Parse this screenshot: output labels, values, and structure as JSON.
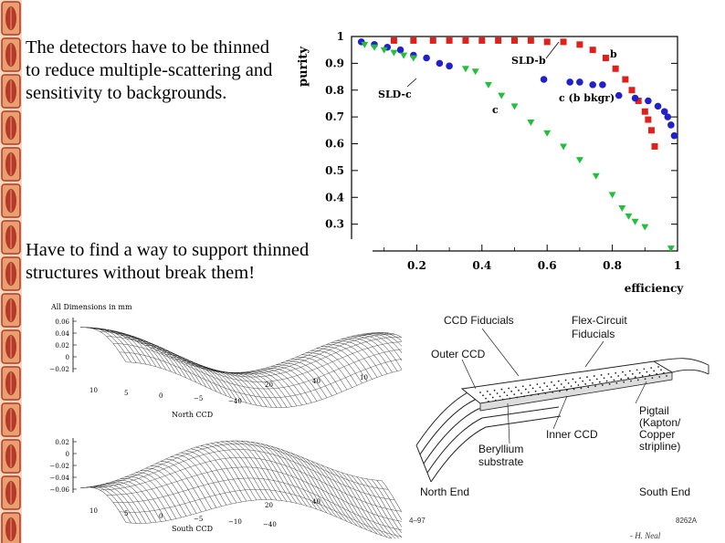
{
  "slide": {
    "text_1": "The detectors have to be thinned to reduce multiple-scattering and sensitivity to backgrounds.",
    "text_2": "Have to find a way to support thinned structures without break them!",
    "credit": "- H. Neal",
    "figure_code_left": "4–97",
    "figure_code_right": "8262A"
  },
  "border": {
    "color": "#b5382d",
    "accent": "#e8a070"
  },
  "chart_data": [
    {
      "type": "scatter",
      "xlabel": "efficiency",
      "ylabel": "purity",
      "xlim": [
        0,
        1
      ],
      "ylim": [
        0.2,
        1.0
      ],
      "x_ticks": [
        "0",
        "0.2",
        "0.4",
        "0.6",
        "0.8",
        "1"
      ],
      "y_ticks": [
        "0.2",
        "0.3",
        "0.4",
        "0.5",
        "0.6",
        "0.7",
        "0.8",
        "0.9",
        "1"
      ],
      "annotations": [
        "SLD-b",
        "SLD-c",
        "b",
        "c",
        "c (b bkgr)"
      ],
      "series": [
        {
          "name": "b",
          "color": "#e0201a",
          "marker": "square",
          "x": [
            0.13,
            0.19,
            0.25,
            0.3,
            0.35,
            0.4,
            0.45,
            0.5,
            0.55,
            0.6,
            0.65,
            0.7,
            0.74,
            0.78,
            0.81,
            0.84,
            0.86,
            0.88,
            0.9,
            0.91,
            0.92,
            0.93
          ],
          "y": [
            0.985,
            0.985,
            0.985,
            0.985,
            0.985,
            0.985,
            0.985,
            0.985,
            0.985,
            0.98,
            0.98,
            0.97,
            0.95,
            0.92,
            0.88,
            0.84,
            0.8,
            0.76,
            0.72,
            0.69,
            0.65,
            0.59
          ]
        },
        {
          "name": "c (b bkgr)",
          "color": "#2020cc",
          "marker": "circle",
          "x": [
            0.03,
            0.07,
            0.11,
            0.15,
            0.19,
            0.23,
            0.27,
            0.3,
            0.59,
            0.67,
            0.7,
            0.74,
            0.77,
            0.82,
            0.87,
            0.91,
            0.94,
            0.96,
            0.97,
            0.98,
            0.99
          ],
          "y": [
            0.98,
            0.97,
            0.96,
            0.95,
            0.93,
            0.92,
            0.9,
            0.89,
            0.84,
            0.83,
            0.83,
            0.82,
            0.82,
            0.78,
            0.77,
            0.76,
            0.74,
            0.72,
            0.7,
            0.67,
            0.63
          ]
        },
        {
          "name": "c",
          "color": "#22c03a",
          "marker": "triangle-down",
          "x": [
            0.04,
            0.07,
            0.1,
            0.13,
            0.16,
            0.19,
            0.35,
            0.38,
            0.42,
            0.46,
            0.5,
            0.55,
            0.6,
            0.65,
            0.7,
            0.75,
            0.8,
            0.83,
            0.85,
            0.87,
            0.9,
            0.98
          ],
          "y": [
            0.97,
            0.96,
            0.95,
            0.94,
            0.93,
            0.92,
            0.88,
            0.87,
            0.82,
            0.78,
            0.74,
            0.68,
            0.64,
            0.59,
            0.54,
            0.48,
            0.41,
            0.36,
            0.33,
            0.31,
            0.29,
            0.21
          ]
        }
      ]
    },
    {
      "type": "surface",
      "title": "All Dimensions in mm",
      "xlabel": "North CCD",
      "z_ticks": [
        "0.06",
        "0.04",
        "0.02",
        "0",
        "−0.02"
      ],
      "x_ticks": [
        "10",
        "5",
        "0",
        "−5",
        "−40"
      ],
      "y_ticks": [
        "20",
        "40",
        "10"
      ]
    },
    {
      "type": "surface",
      "xlabel": "South CCD",
      "z_ticks": [
        "0.02",
        "0",
        "−0.02",
        "−0.04",
        "−0.06"
      ],
      "x_ticks": [
        "10",
        "5",
        "0",
        "−5",
        "−10",
        "−40"
      ],
      "y_ticks": [
        "20",
        "40"
      ]
    }
  ],
  "diagram": {
    "labels": {
      "ccd_fiducials": "CCD Fiducials",
      "flex_circuit": "Flex-Circuit",
      "flex_circuit_2": "Fiducials",
      "outer_ccd": "Outer CCD",
      "inner_ccd": "Inner CCD",
      "beryllium": "Beryllium",
      "beryllium_2": "substrate",
      "pigtail_1": "Pigtail",
      "pigtail_2": "(Kapton/",
      "pigtail_3": "Copper",
      "pigtail_4": "stripline)",
      "north_end": "North End",
      "south_end": "South End"
    }
  }
}
